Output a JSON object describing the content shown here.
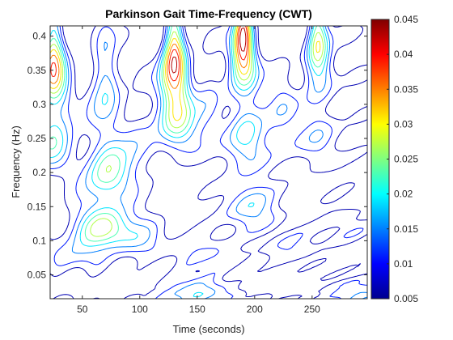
{
  "chart_data": {
    "type": "heatmap",
    "subtype": "contour",
    "title": "Parkinson Gait Time-Frequency (CWT)",
    "xlabel": "Time (seconds)",
    "ylabel": "Frequency (Hz)",
    "xlim": [
      22,
      298
    ],
    "ylim": [
      0.015,
      0.415
    ],
    "xticks": [
      50,
      100,
      150,
      200,
      250
    ],
    "xtick_labels": [
      "50",
      "100",
      "150",
      "200",
      "250"
    ],
    "yticks": [
      0.05,
      0.1,
      0.15,
      0.2,
      0.25,
      0.3,
      0.35,
      0.4
    ],
    "ytick_labels": [
      "0.05",
      "0.1",
      "0.15",
      "0.2",
      "0.25",
      "0.3",
      "0.35",
      "0.4"
    ],
    "colorbar": {
      "colormap": "jet",
      "range": [
        0.005,
        0.045
      ],
      "ticks": [
        0.005,
        0.01,
        0.015,
        0.02,
        0.025,
        0.03,
        0.035,
        0.04,
        0.045
      ],
      "tick_labels": [
        "0.005",
        "0.01",
        "0.015",
        "0.02",
        "0.025",
        "0.03",
        "0.035",
        "0.04",
        "0.045"
      ]
    },
    "grid": false,
    "features": [
      {
        "t": 25,
        "f": 0.36,
        "mag": 0.036
      },
      {
        "t": 25,
        "f": 0.25,
        "mag": 0.022
      },
      {
        "t": 70,
        "f": 0.12,
        "mag": 0.028
      },
      {
        "t": 72,
        "f": 0.2,
        "mag": 0.026
      },
      {
        "t": 70,
        "f": 0.33,
        "mag": 0.02
      },
      {
        "t": 130,
        "f": 0.37,
        "mag": 0.04
      },
      {
        "t": 132,
        "f": 0.28,
        "mag": 0.026
      },
      {
        "t": 190,
        "f": 0.39,
        "mag": 0.044
      },
      {
        "t": 192,
        "f": 0.25,
        "mag": 0.022
      },
      {
        "t": 195,
        "f": 0.15,
        "mag": 0.018
      },
      {
        "t": 255,
        "f": 0.38,
        "mag": 0.03
      },
      {
        "t": 255,
        "f": 0.25,
        "mag": 0.016
      },
      {
        "t": 45,
        "f": 0.08,
        "mag": 0.014
      },
      {
        "t": 105,
        "f": 0.1,
        "mag": 0.012
      },
      {
        "t": 160,
        "f": 0.08,
        "mag": 0.012
      },
      {
        "t": 230,
        "f": 0.09,
        "mag": 0.011
      },
      {
        "t": 280,
        "f": 0.12,
        "mag": 0.01
      },
      {
        "t": 100,
        "f": 0.25,
        "mag": 0.012
      },
      {
        "t": 160,
        "f": 0.3,
        "mag": 0.013
      },
      {
        "t": 225,
        "f": 0.3,
        "mag": 0.012
      },
      {
        "t": 150,
        "f": 0.025,
        "mag": 0.018
      },
      {
        "t": 290,
        "f": 0.025,
        "mag": 0.014
      }
    ]
  }
}
